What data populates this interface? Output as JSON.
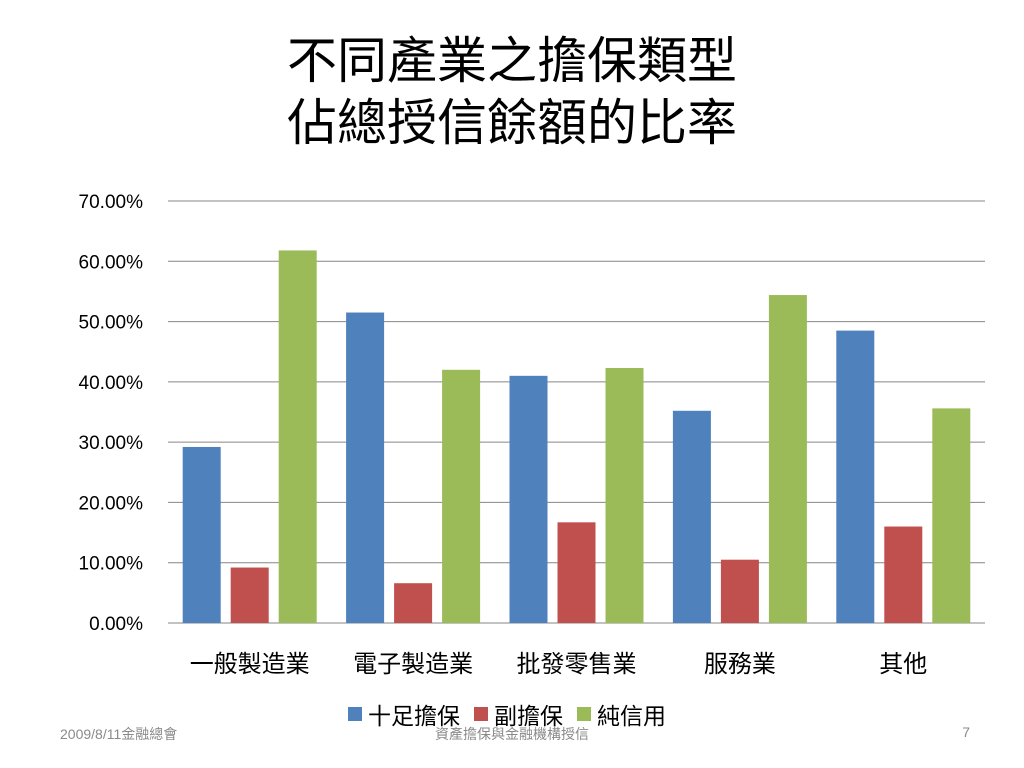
{
  "slide": {
    "title_lines": [
      "不同產業之擔保類型",
      "佔總授信餘額的比率"
    ],
    "footer_date": "2009/8/11金融總會",
    "footer_center": "資產擔保與金融機構授信",
    "page_number": "7"
  },
  "chart_data": {
    "type": "bar",
    "categories": [
      "一般製造業",
      "電子製造業",
      "批發零售業",
      "服務業",
      "其他"
    ],
    "series": [
      {
        "name": "十足擔保",
        "color": "#4F81BD",
        "values": [
          29.2,
          51.5,
          41.0,
          35.2,
          48.5
        ]
      },
      {
        "name": "副擔保",
        "color": "#C0504D",
        "values": [
          9.2,
          6.6,
          16.7,
          10.5,
          16.0
        ]
      },
      {
        "name": "純信用",
        "color": "#9BBB59",
        "values": [
          61.8,
          42.0,
          42.3,
          54.4,
          35.6
        ]
      }
    ],
    "ylim": [
      0,
      70
    ],
    "yticks": [
      "0.00%",
      "10.00%",
      "20.00%",
      "30.00%",
      "40.00%",
      "50.00%",
      "60.00%",
      "70.00%"
    ],
    "grid": true,
    "legend_position": "bottom"
  }
}
